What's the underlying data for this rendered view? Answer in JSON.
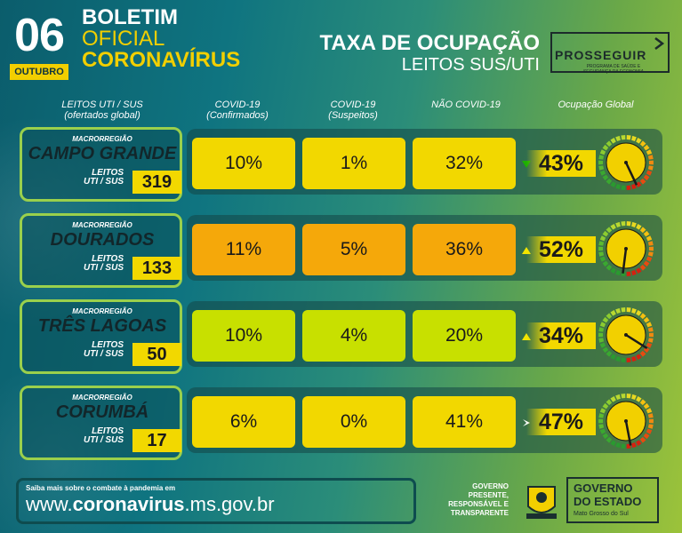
{
  "header": {
    "day": "06",
    "month": "OUTUBRO",
    "boletim_line1": "BOLETIM",
    "boletim_line2": "OFICIAL",
    "boletim_line3": "CORONAVÍRUS",
    "taxa_title": "TAXA DE OCUPAÇÃO",
    "taxa_subtitle": "LEITOS SUS/UTI",
    "prosseguir_logo": "PROSSEGUIR",
    "prosseguir_sub": "PROGRAMA DE SAÚDE E SEGURANÇA DA ECONOMIA"
  },
  "columns": {
    "c1_line1": "LEITOS UTI / SUS",
    "c1_line2": "(ofertados global)",
    "c2_line1": "COVID-19",
    "c2_line2": "(Confirmados)",
    "c3_line1": "COVID-19",
    "c3_line2": "(Suspeitos)",
    "c4_line1": "NÃO COVID-19",
    "c5_line1": "Ocupação Global"
  },
  "rows": [
    {
      "macro_label": "MACRORREGIÃO",
      "name": "CAMPO GRANDE",
      "leitos_label1": "LEITOS",
      "leitos_label2": "UTI / SUS",
      "leitos": "319",
      "confirmados": "10%",
      "suspeitos": "1%",
      "nao_covid": "32%",
      "ocupacao": "43%",
      "ocupacao_fraction": 0.43,
      "trend": "down",
      "box_color": "#f2d800"
    },
    {
      "macro_label": "MACRORREGIÃO",
      "name": "DOURADOS",
      "leitos_label1": "LEITOS",
      "leitos_label2": "UTI / SUS",
      "leitos": "133",
      "confirmados": "11%",
      "suspeitos": "5%",
      "nao_covid": "36%",
      "ocupacao": "52%",
      "ocupacao_fraction": 0.52,
      "trend": "up",
      "box_color": "#f5a80a"
    },
    {
      "macro_label": "MACRORREGIÃO",
      "name": "TRÊS LAGOAS",
      "leitos_label1": "LEITOS",
      "leitos_label2": "UTI / SUS",
      "leitos": "50",
      "confirmados": "10%",
      "suspeitos": "4%",
      "nao_covid": "20%",
      "ocupacao": "34%",
      "ocupacao_fraction": 0.34,
      "trend": "up",
      "box_color": "#c8e000"
    },
    {
      "macro_label": "MACRORREGIÃO",
      "name": "CORUMBÁ",
      "leitos_label1": "LEITOS",
      "leitos_label2": "UTI / SUS",
      "leitos": "17",
      "confirmados": "6%",
      "suspeitos": "0%",
      "nao_covid": "41%",
      "ocupacao": "47%",
      "ocupacao_fraction": 0.47,
      "trend": "same",
      "box_color": "#f2d800"
    }
  ],
  "footer": {
    "saiba": "Saiba mais sobre o combate à pandemia em",
    "site_prefix": "www.",
    "site_bold": "coronavirus",
    "site_suffix": ".ms.gov.br",
    "gov_line1": "GOVERNO",
    "gov_line2": "PRESENTE,",
    "gov_line3": "RESPONSÁVEL E",
    "gov_line4": "TRANSPARENTE",
    "governo_line1": "GOVERNO",
    "governo_line2": "DO ESTADO",
    "governo_line3": "Mato Grosso do Sul"
  },
  "colors": {
    "yellow": "#f2d800",
    "orange": "#f5a80a",
    "lime": "#c8e000",
    "trend_down": "#1db000",
    "trend_up": "#f2e400",
    "trend_same": "#ffffff"
  }
}
